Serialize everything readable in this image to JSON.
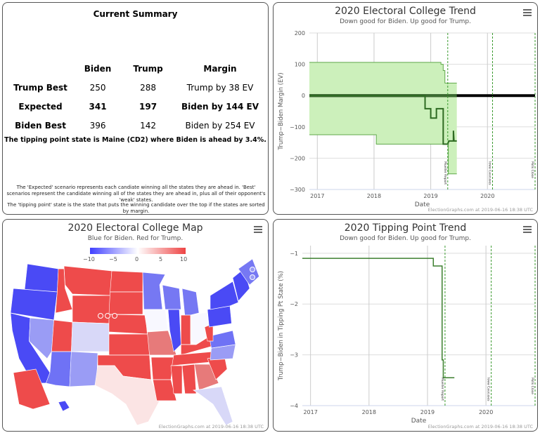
{
  "summary": {
    "title": "Current Summary",
    "headers": [
      "",
      "Biden",
      "Trump",
      "Margin"
    ],
    "rows": [
      {
        "label": "Trump Best",
        "biden": "250",
        "trump": "288",
        "margin": "Trump by 38 EV",
        "bold": false
      },
      {
        "label": "Expected",
        "biden": "341",
        "trump": "197",
        "margin": "Biden by 144 EV",
        "bold": true
      },
      {
        "label": "Biden Best",
        "biden": "396",
        "trump": "142",
        "margin": "Biden by 254 EV",
        "bold": false
      }
    ],
    "tipping_point": "The tipping point state is Maine (CD2) where Biden is ahead by 3.4%.",
    "note1": "The 'Expected' scenario represents each candiate winning all the states they are ahead in. 'Best' scenarios represent the candidate winning all of the states they are ahead in, plus all of their opponent's 'weak' states.",
    "note2": "The 'tipping point' state is the state that puts the winning candidate over the top if the states are sorted by margin."
  },
  "credit": "ElectionGraphs.com at 2019-06-16 18:38 UTC",
  "map": {
    "title": "2020 Electoral College Map",
    "subtitle": "Blue for Biden. Red for Trump.",
    "legend_ticks": [
      "−10",
      "−5",
      "0",
      "5",
      "10"
    ],
    "colors": {
      "biden": "#4040ff",
      "trump": "#ee4444",
      "neutral": "#ffffff"
    }
  },
  "chart_data": [
    {
      "type": "line",
      "title": "2020 Electoral College Trend",
      "subtitle": "Down good for Biden. Up good for Trump.",
      "xlabel": "Date",
      "ylabel": "Trump−Biden Margin (EV)",
      "xlim": [
        2016.86,
        2020.84
      ],
      "ylim": [
        -300,
        200
      ],
      "xticks": [
        "2017",
        "2018",
        "2019",
        "2020"
      ],
      "yticks": [
        "200",
        "100",
        "0",
        "−100",
        "−200",
        "−300"
      ],
      "ytick_values": [
        200,
        100,
        0,
        -100,
        -200,
        -300
      ],
      "grid": true,
      "band": {
        "upper": [
          [
            2016.86,
            106
          ],
          [
            2019.18,
            106
          ],
          [
            2019.18,
            100
          ],
          [
            2019.22,
            100
          ],
          [
            2019.22,
            80
          ],
          [
            2019.25,
            80
          ],
          [
            2019.25,
            40
          ],
          [
            2019.46,
            40
          ]
        ],
        "lower": [
          [
            2016.86,
            -125
          ],
          [
            2018.04,
            -125
          ],
          [
            2018.04,
            -155
          ],
          [
            2019.31,
            -155
          ],
          [
            2019.31,
            -250
          ],
          [
            2019.46,
            -250
          ]
        ],
        "color": "#ccf0bb"
      },
      "series": [
        {
          "values": [
            [
              2016.86,
              0
            ],
            [
              2018.9,
              0
            ],
            [
              2018.9,
              -42
            ],
            [
              2019.0,
              -42
            ],
            [
              2019.0,
              -72
            ],
            [
              2019.1,
              -72
            ],
            [
              2019.1,
              -42
            ],
            [
              2019.22,
              -42
            ],
            [
              2019.22,
              -155
            ],
            [
              2019.3,
              -155
            ],
            [
              2019.32,
              -145
            ],
            [
              2019.4,
              -145
            ],
            [
              2019.4,
              -112
            ],
            [
              2019.41,
              -145
            ],
            [
              2019.46,
              -145
            ]
          ],
          "color": "#2e6b22"
        }
      ],
      "reference_line": {
        "y": 0,
        "from": 2016.86,
        "to": 2020.84,
        "color": "#000000"
      },
      "events": [
        {
          "x": 2019.3,
          "label": "Mueller Report"
        },
        {
          "x": 2020.09,
          "label": "Iowa Caucuses"
        },
        {
          "x": 2020.84,
          "label": "Polls Close"
        }
      ]
    },
    {
      "type": "line",
      "title": "2020 Tipping Point Trend",
      "subtitle": "Down good for Biden. Up good for Trump.",
      "xlabel": "Date",
      "ylabel": "Trump−Biden in Tipping Pt State (%)",
      "xlim": [
        2016.86,
        2020.84
      ],
      "ylim": [
        -4,
        -0.85
      ],
      "xticks": [
        "2017",
        "2018",
        "2019",
        "2020"
      ],
      "yticks": [
        "−1",
        "−2",
        "−3",
        "−4"
      ],
      "ytick_values": [
        -1,
        -2,
        -3,
        -4
      ],
      "grid": true,
      "series": [
        {
          "values": [
            [
              2016.86,
              -1.1
            ],
            [
              2019.1,
              -1.1
            ],
            [
              2019.1,
              -1.25
            ],
            [
              2019.25,
              -1.25
            ],
            [
              2019.25,
              -3.1
            ],
            [
              2019.27,
              -3.1
            ],
            [
              2019.27,
              -3.45
            ],
            [
              2019.46,
              -3.45
            ]
          ],
          "color": "#3c7f2e"
        }
      ],
      "events": [
        {
          "x": 2019.3,
          "label": "Mueller Report"
        },
        {
          "x": 2020.09,
          "label": "Iowa Caucuses"
        },
        {
          "x": 2020.84,
          "label": "Polls Close"
        }
      ]
    }
  ]
}
